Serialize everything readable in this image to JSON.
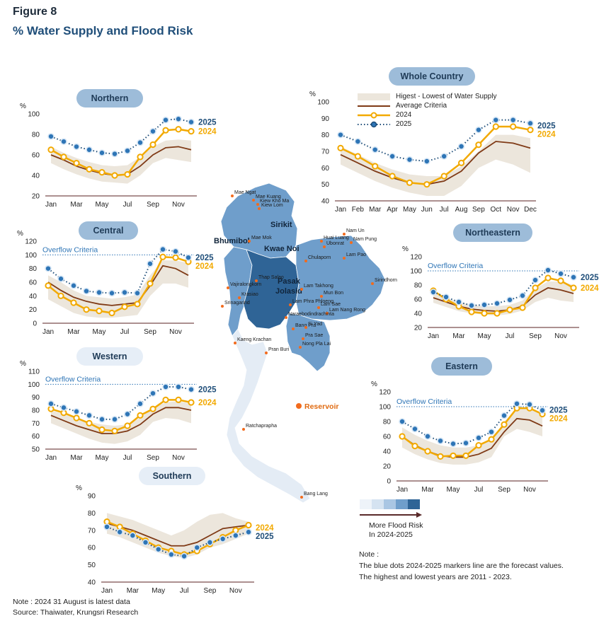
{
  "figure_label": "Figure 8",
  "title": "% Water Supply and Flood Risk",
  "legend": {
    "range": "Higest - Lowest of Water Supply",
    "average": "Average Criteria",
    "y2024": "2024",
    "y2025": "2025"
  },
  "colors": {
    "band": "#ece6dc",
    "avg": "#7f3a16",
    "y2024": "#f2a900",
    "y2025": "#2e75b6",
    "y2025dark": "#1f4e79"
  },
  "overflow_label": "Overflow Criteria",
  "unit": "%",
  "chart_data": [
    {
      "id": "whole",
      "type": "line",
      "region": "Whole Country",
      "categories": [
        "Jan",
        "Feb",
        "Mar",
        "Apr",
        "May",
        "Jun",
        "Jul",
        "Aug",
        "Sep",
        "Oct",
        "Nov",
        "Dec"
      ],
      "ylim": [
        40,
        100
      ],
      "yticks": [
        40,
        50,
        60,
        70,
        80,
        90,
        100
      ],
      "xticks": [
        "Jan",
        "Feb",
        "Mar",
        "Apr",
        "May",
        "Jun",
        "Jul",
        "Aug",
        "Sep",
        "Oct",
        "Nov",
        "Dec"
      ],
      "band_high": [
        73,
        68,
        63,
        59,
        56,
        55,
        55,
        61,
        70,
        80,
        80,
        78
      ],
      "band_low": [
        62,
        57,
        52,
        48,
        45,
        43,
        43,
        49,
        60,
        65,
        62,
        57
      ],
      "avg": [
        68,
        63,
        58,
        54,
        51,
        50,
        52,
        58,
        69,
        76,
        75,
        72
      ],
      "y2024": [
        72,
        67,
        61,
        55,
        51,
        50,
        55,
        63,
        74,
        85,
        85,
        83
      ],
      "y2025": [
        80,
        76,
        71,
        67,
        65,
        64,
        67,
        73,
        83,
        89,
        89,
        87
      ],
      "overflow": null
    },
    {
      "id": "northern",
      "type": "line",
      "region": "Northern",
      "categories": [
        "Jan",
        "Feb",
        "Mar",
        "Apr",
        "May",
        "Jun",
        "Jul",
        "Aug",
        "Sep",
        "Oct",
        "Nov",
        "Dec"
      ],
      "ylim": [
        20,
        100
      ],
      "yticks": [
        20,
        40,
        60,
        80,
        100
      ],
      "xticks": [
        "Jan",
        "Mar",
        "May",
        "Jul",
        "Sep",
        "Nov"
      ],
      "band_high": [
        68,
        62,
        57,
        53,
        50,
        49,
        50,
        58,
        68,
        74,
        75,
        74
      ],
      "band_low": [
        52,
        46,
        41,
        37,
        34,
        33,
        32,
        40,
        52,
        57,
        55,
        53
      ],
      "avg": [
        60,
        55,
        49,
        45,
        42,
        40,
        41,
        49,
        60,
        67,
        68,
        65
      ],
      "y2024": [
        65,
        58,
        52,
        46,
        43,
        40,
        41,
        58,
        70,
        84,
        85,
        83
      ],
      "y2025": [
        78,
        73,
        68,
        65,
        62,
        61,
        64,
        72,
        83,
        94,
        95,
        92
      ],
      "overflow": null
    },
    {
      "id": "central",
      "type": "line",
      "region": "Central",
      "categories": [
        "Jan",
        "Feb",
        "Mar",
        "Apr",
        "May",
        "Jun",
        "Jul",
        "Aug",
        "Sep",
        "Oct",
        "Nov",
        "Dec"
      ],
      "ylim": [
        0,
        120
      ],
      "yticks": [
        0,
        20,
        40,
        60,
        80,
        100,
        120
      ],
      "xticks": [
        "Jan",
        "Mar",
        "May",
        "Jul",
        "Sep",
        "Nov"
      ],
      "band_high": [
        70,
        60,
        48,
        40,
        38,
        36,
        38,
        42,
        70,
        92,
        92,
        88
      ],
      "band_low": [
        35,
        25,
        15,
        10,
        8,
        8,
        10,
        12,
        40,
        58,
        58,
        52
      ],
      "avg": [
        60,
        48,
        38,
        32,
        28,
        26,
        28,
        30,
        55,
        84,
        80,
        70
      ],
      "y2024": [
        55,
        40,
        30,
        20,
        18,
        15,
        24,
        28,
        58,
        97,
        96,
        90
      ],
      "y2025": [
        80,
        65,
        55,
        47,
        45,
        44,
        45,
        44,
        87,
        108,
        105,
        96
      ],
      "overflow": 100
    },
    {
      "id": "northeastern",
      "type": "line",
      "region": "Northeastern",
      "categories": [
        "Jan",
        "Feb",
        "Mar",
        "Apr",
        "May",
        "Jun",
        "Jul",
        "Aug",
        "Sep",
        "Oct",
        "Nov",
        "Dec"
      ],
      "ylim": [
        20,
        120
      ],
      "yticks": [
        20,
        40,
        60,
        80,
        100,
        120
      ],
      "xticks": [
        "Jan",
        "Mar",
        "May",
        "Jul",
        "Sep",
        "Nov"
      ],
      "band_high": [
        68,
        62,
        56,
        52,
        50,
        50,
        52,
        58,
        75,
        85,
        85,
        80
      ],
      "band_low": [
        55,
        49,
        43,
        40,
        38,
        37,
        39,
        44,
        56,
        62,
        58,
        56
      ],
      "avg": [
        62,
        56,
        50,
        46,
        44,
        43,
        45,
        50,
        66,
        76,
        73,
        68
      ],
      "y2024": [
        72,
        60,
        50,
        42,
        40,
        40,
        45,
        48,
        76,
        90,
        86,
        76
      ],
      "y2025": [
        70,
        63,
        56,
        51,
        52,
        54,
        59,
        65,
        87,
        101,
        96,
        91
      ],
      "overflow": 100
    },
    {
      "id": "western",
      "type": "line",
      "region": "Western",
      "categories": [
        "Jan",
        "Feb",
        "Mar",
        "Apr",
        "May",
        "Jun",
        "Jul",
        "Aug",
        "Sep",
        "Oct",
        "Nov",
        "Dec"
      ],
      "ylim": [
        50,
        110
      ],
      "yticks": [
        50,
        60,
        70,
        80,
        90,
        100,
        110
      ],
      "xticks": [
        "Jan",
        "Mar",
        "May",
        "Jul",
        "Sep",
        "Nov"
      ],
      "band_high": [
        80,
        77,
        74,
        71,
        69,
        68,
        69,
        74,
        82,
        86,
        87,
        85
      ],
      "band_low": [
        70,
        66,
        62,
        58,
        55,
        54,
        56,
        61,
        71,
        74,
        73,
        70
      ],
      "avg": [
        76,
        72,
        68,
        65,
        62,
        62,
        64,
        69,
        77,
        82,
        82,
        80
      ],
      "y2024": [
        81,
        78,
        74,
        70,
        65,
        64,
        68,
        76,
        81,
        88,
        88,
        86
      ],
      "y2025": [
        85,
        82,
        79,
        76,
        73,
        73,
        77,
        85,
        93,
        98,
        98,
        96
      ],
      "overflow": 100
    },
    {
      "id": "eastern",
      "type": "line",
      "region": "Eastern",
      "categories": [
        "Jan",
        "Feb",
        "Mar",
        "Apr",
        "May",
        "Jun",
        "Jul",
        "Aug",
        "Sep",
        "Oct",
        "Nov",
        "Dec"
      ],
      "ylim": [
        0,
        120
      ],
      "yticks": [
        0,
        20,
        40,
        60,
        80,
        100,
        120
      ],
      "xticks": [
        "Jan",
        "Mar",
        "May",
        "Jul",
        "Sep",
        "Nov"
      ],
      "band_high": [
        72,
        62,
        54,
        48,
        45,
        45,
        48,
        55,
        80,
        98,
        97,
        90
      ],
      "band_low": [
        45,
        36,
        29,
        24,
        22,
        22,
        25,
        32,
        60,
        70,
        66,
        60
      ],
      "avg": [
        60,
        48,
        40,
        34,
        32,
        32,
        36,
        44,
        66,
        84,
        82,
        74
      ],
      "y2024": [
        60,
        47,
        40,
        33,
        34,
        34,
        48,
        56,
        76,
        98,
        98,
        90
      ],
      "y2025": [
        80,
        70,
        60,
        54,
        50,
        51,
        58,
        66,
        88,
        104,
        103,
        95
      ],
      "overflow": 100
    },
    {
      "id": "southern",
      "type": "line",
      "region": "Southern",
      "categories": [
        "Jan",
        "Feb",
        "Mar",
        "Apr",
        "May",
        "Jun",
        "Jul",
        "Aug",
        "Sep",
        "Oct",
        "Nov",
        "Dec"
      ],
      "ylim": [
        40,
        90
      ],
      "yticks": [
        40,
        50,
        60,
        70,
        80,
        90
      ],
      "xticks": [
        "Jan",
        "Mar",
        "May",
        "Jul",
        "Sep",
        "Nov"
      ],
      "band_high": [
        80,
        78,
        76,
        73,
        70,
        67,
        70,
        75,
        79,
        80,
        77,
        75
      ],
      "band_low": [
        68,
        66,
        63,
        60,
        57,
        55,
        54,
        56,
        60,
        62,
        65,
        68
      ],
      "avg": [
        74,
        72,
        70,
        67,
        64,
        61,
        61,
        63,
        67,
        71,
        72,
        73
      ],
      "y2024": [
        75,
        72,
        68,
        64,
        60,
        58,
        56,
        58,
        62,
        66,
        70,
        73
      ],
      "y2025": [
        72,
        69,
        67,
        63,
        59,
        56,
        55,
        60,
        63,
        65,
        67,
        69
      ],
      "overflow": null
    }
  ],
  "map": {
    "reservoir_label": "Reservoir",
    "regions_big": [
      "Sirikit",
      "Bhumibol",
      "Kwae Noi",
      "Pasak",
      "Jolasid"
    ],
    "dams": [
      "Mae Ngat",
      "Mae Kuang",
      "Kiew Kho Ma",
      "Kiew Lom",
      "Mae Mok",
      "Huai Luang",
      "Nam Un",
      "Ubonrat",
      "Nam Pung",
      "Chulaporn",
      "Lam Pao",
      "Sirindhorn",
      "Thap Salao",
      "Vajiralongkorn",
      "Krasiao",
      "Srinagarind",
      "Lam Takhong",
      "Mun Bon",
      "Lam Phra Phloeng",
      "Lam Sae",
      "Lam Nang Rong",
      "Naraebodindrachinta",
      "Bang Pra",
      "Si Yad",
      "Pra Sae",
      "Nong Pla Lai",
      "Kaeng Krachan",
      "Pran Buri",
      "Ratchaprapha",
      "Bang Lang"
    ]
  },
  "risk": {
    "label1": "More Flood Risk",
    "label2": "In 2024-2025",
    "colors": [
      "#eef3f9",
      "#d5e3f1",
      "#a9c6e3",
      "#6f9ecb",
      "#2f6496"
    ]
  },
  "note_right": {
    "head": "Note :",
    "line1": "The blue dots 2024-2025 markers line are the forecast values.",
    "line2": "The highest and lowest years are 2011 - 2023."
  },
  "note_bottom": {
    "line1": "Note : 2024 31 August is latest data",
    "line2": "Source: Thaiwater, Krungsri Research"
  }
}
